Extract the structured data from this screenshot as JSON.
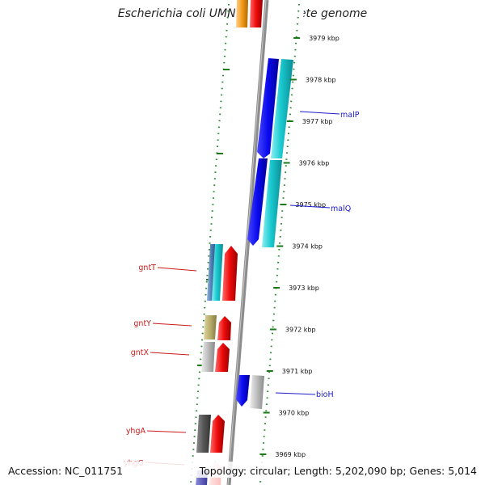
{
  "title": "Escherichia coli UMN026, complete genome",
  "accession": "Accession: NC_011751",
  "topology": "Topology: circular; Length: 5,202,090 bp; Genes: 5,014",
  "scale_unit": "kbp",
  "kbp_ticks": [
    {
      "kbp": 3979,
      "label": "3979 kbp"
    },
    {
      "kbp": 3978,
      "label": "3978 kbp"
    },
    {
      "kbp": 3977,
      "label": "3977 kbp"
    },
    {
      "kbp": 3976,
      "label": "3976 kbp"
    },
    {
      "kbp": 3975,
      "label": "3975 kbp"
    },
    {
      "kbp": 3974,
      "label": "3974 kbp"
    },
    {
      "kbp": 3973,
      "label": "3973 kbp"
    },
    {
      "kbp": 3972,
      "label": "3972 kbp"
    },
    {
      "kbp": 3971,
      "label": "3971 kbp"
    },
    {
      "kbp": 3970,
      "label": "3970 kbp"
    },
    {
      "kbp": 3969,
      "label": "3969 kbp"
    }
  ],
  "gene_labels_forward": [
    {
      "name": "malP",
      "color": "#1a1acc"
    },
    {
      "name": "malQ",
      "color": "#1a1acc"
    },
    {
      "name": "bioH",
      "color": "#1a1acc"
    }
  ],
  "gene_labels_reverse": [
    {
      "name": "gntT",
      "color": "#cc1a1a"
    },
    {
      "name": "gntY",
      "color": "#cc1a1a"
    },
    {
      "name": "gntX",
      "color": "#cc1a1a"
    },
    {
      "name": "yhgA",
      "color": "#cc1a1a"
    },
    {
      "name": "yhgG",
      "color": "#cc1a1a"
    }
  ],
  "colors": {
    "blue_gene": "#0a0aee",
    "cyan_gene": "#19c9d0",
    "red_gene": "#ee0a0a",
    "grey_gene": "#bcbcbc",
    "olive_gene": "#b8ad6a",
    "darkgrey_gene": "#555555",
    "steel_gene": "#4a7ab0",
    "backbone": "#8c8c8c",
    "track_dots": "#2a8a2a"
  }
}
